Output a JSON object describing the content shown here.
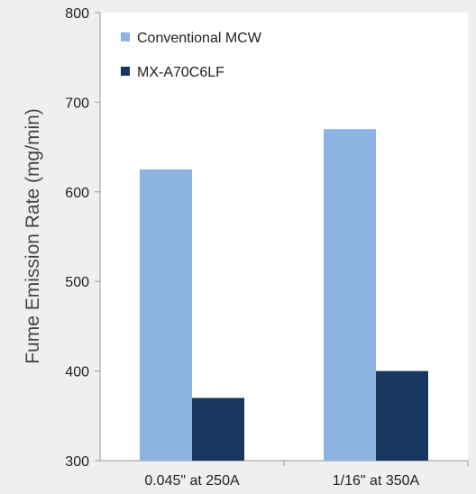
{
  "chart_data": {
    "type": "bar",
    "title": "",
    "xlabel": "",
    "ylabel": "Fume Emission Rate (mg/min)",
    "categories": [
      "0.045\" at 250A",
      "1/16\" at 350A"
    ],
    "series": [
      {
        "name": "Conventional MCW",
        "values": [
          625,
          670
        ],
        "color": "#8db3e2"
      },
      {
        "name": "MX-A70C6LF",
        "values": [
          370,
          400
        ],
        "color": "#17375e"
      }
    ],
    "ylim": [
      300,
      800
    ],
    "yticks": [
      "300",
      "400",
      "500",
      "600",
      "700",
      "800"
    ],
    "grid": false,
    "legend_position": "top-left"
  }
}
